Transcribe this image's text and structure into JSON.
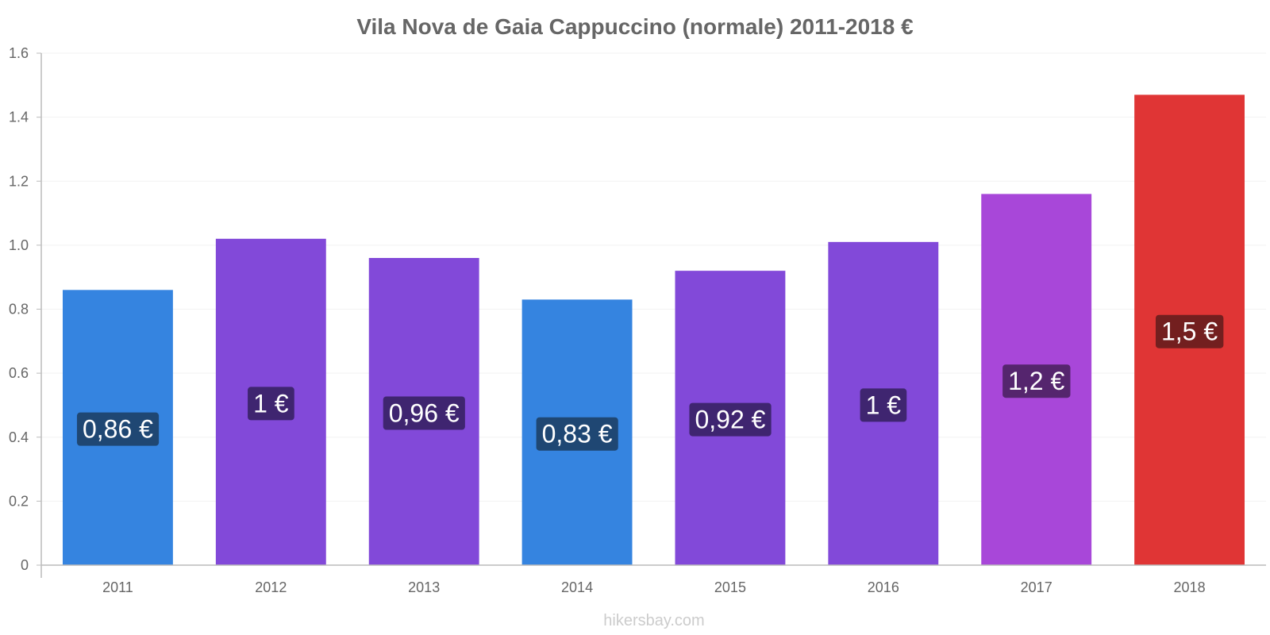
{
  "chart_data": {
    "type": "bar",
    "title": "Vila Nova de Gaia Cappuccino (normale) 2011-2018 €",
    "categories": [
      "2011",
      "2012",
      "2013",
      "2014",
      "2015",
      "2016",
      "2017",
      "2018"
    ],
    "values": [
      0.86,
      1.02,
      0.96,
      0.83,
      0.92,
      1.01,
      1.16,
      1.47
    ],
    "data_labels": [
      "0,86 €",
      "1 €",
      "0,96 €",
      "0,83 €",
      "0,92 €",
      "1 €",
      "1,2 €",
      "1,5 €"
    ],
    "bar_colors": [
      "#3584e0",
      "#8249d9",
      "#8249d9",
      "#3584e0",
      "#8249d9",
      "#8249d9",
      "#a847d9",
      "#e03535"
    ],
    "label_bg_colors": [
      "#1f4773",
      "#3f2570",
      "#3f2570",
      "#1f4773",
      "#3f2570",
      "#3f2570",
      "#55256e",
      "#731f1f"
    ],
    "ylim": [
      0,
      1.6
    ],
    "yticks": [
      0,
      0.2,
      0.4,
      0.6,
      0.8,
      1.0,
      1.2,
      1.4,
      1.6
    ],
    "ytick_labels": [
      "0",
      "0.2",
      "0.4",
      "0.6",
      "0.8",
      "1.0",
      "1.2",
      "1.4",
      "1.6"
    ],
    "xlabel": "",
    "ylabel": "",
    "grid": true,
    "legend": "none"
  },
  "credit": "hikersbay.com"
}
